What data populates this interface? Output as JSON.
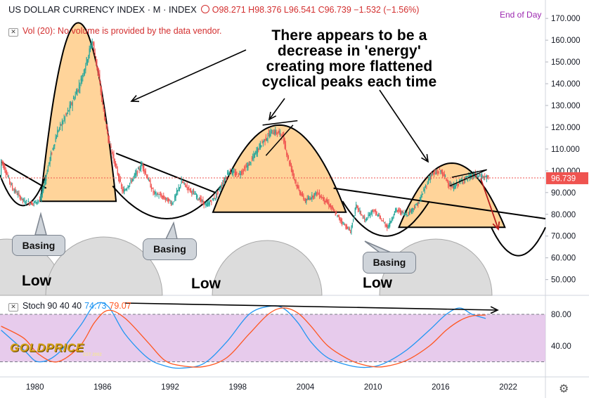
{
  "header": {
    "symbol": "US DOLLAR CURRENCY INDEX · M · INDEX",
    "ohlc": "O98.271 H98.376 L96.541 C96.739 −1.532 (−1.56%)",
    "end_of_day": "End of Day",
    "volume_label": "Vol (20):",
    "volume_message": "No volume is provided by the data vendor."
  },
  "annotation_text": "There appears to be a decrease in 'energy' creating more flattened cyclical peaks each time",
  "labels": {
    "basing": [
      "Basing",
      "Basing",
      "Basing"
    ],
    "low": [
      "Low",
      "Low",
      "Low"
    ]
  },
  "stoch": {
    "label": "Stoch 90 40 40",
    "k_value": "74.73",
    "d_value": "79.07"
  },
  "logo": {
    "name": "GOLDPRICE",
    "sub": "EST 2002"
  },
  "colors": {
    "price_up": "#26a69a",
    "price_down": "#ef5350",
    "peak_fill": "#ffcc88",
    "k_line": "#2196f3",
    "d_line": "#ff5722",
    "stoch_band": "#e1bee7",
    "price_line": "#ef5350",
    "ann_arrow_red": "#b71c1c"
  },
  "chart_data": [
    {
      "type": "candlestick",
      "title": "US DOLLAR CURRENCY INDEX",
      "x_ticks": [
        "1980",
        "1986",
        "1992",
        "1998",
        "2004",
        "2010",
        "2016",
        "2022"
      ],
      "y_ticks": [
        "170.000",
        "160.000",
        "150.000",
        "140.000",
        "130.000",
        "120.000",
        "110.000",
        "100.000",
        "90.000",
        "80.000",
        "70.000",
        "60.000",
        "50.000"
      ],
      "ylim": [
        46,
        172
      ],
      "xlim": [
        1976.9,
        2025.3
      ],
      "last_price": "96.739",
      "x": [
        1977,
        1978,
        1979,
        1979.8,
        1980.5,
        1981.3,
        1982,
        1983,
        1984,
        1985.1,
        1985.6,
        1986.3,
        1987,
        1987.8,
        1988.5,
        1989.5,
        1990.5,
        1991.3,
        1992.2,
        1993,
        1994,
        1995.2,
        1996,
        1997.2,
        1998,
        1999,
        2000,
        2001,
        2001.9,
        2002.5,
        2003.3,
        2004,
        2005,
        2006,
        2007,
        2008,
        2008.5,
        2009.3,
        2010,
        2011.3,
        2012,
        2013,
        2014,
        2015.1,
        2016,
        2017,
        2018,
        2019,
        2020.3
      ],
      "close": [
        105,
        92,
        86,
        85,
        87,
        105,
        118,
        128,
        140,
        160,
        145,
        120,
        105,
        90,
        95,
        103,
        90,
        88,
        85,
        95,
        90,
        84,
        88,
        100,
        98,
        103,
        112,
        118,
        117,
        105,
        92,
        86,
        90,
        85,
        78,
        72,
        84,
        77,
        82,
        74,
        82,
        80,
        85,
        98,
        100,
        92,
        96,
        98,
        96.7
      ]
    },
    {
      "type": "line",
      "title": "Stoch 90 40 40",
      "y_ticks": [
        "80.00",
        "40.00"
      ],
      "ylim": [
        0,
        100
      ],
      "band": [
        20,
        80
      ],
      "x": [
        1977,
        1979,
        1980.3,
        1982,
        1984,
        1985.3,
        1986.5,
        1988,
        1990,
        1991.5,
        1993,
        1995,
        1997,
        1999,
        2000.7,
        2002,
        2003.3,
        2004.5,
        2006,
        2008,
        2009.5,
        2011,
        2013,
        2015,
        2016.5,
        2017.7,
        2018.8,
        2020
      ],
      "series": [
        {
          "name": "%K",
          "values": [
            60,
            35,
            20,
            30,
            65,
            92,
            90,
            55,
            25,
            15,
            12,
            18,
            45,
            80,
            90,
            88,
            70,
            45,
            25,
            15,
            13,
            18,
            35,
            60,
            80,
            88,
            80,
            74.73
          ]
        },
        {
          "name": "%D",
          "values": [
            65,
            50,
            30,
            20,
            40,
            70,
            85,
            75,
            45,
            22,
            15,
            14,
            25,
            55,
            80,
            88,
            82,
            65,
            40,
            22,
            15,
            14,
            22,
            40,
            60,
            72,
            78,
            79.07
          ]
        }
      ]
    }
  ]
}
